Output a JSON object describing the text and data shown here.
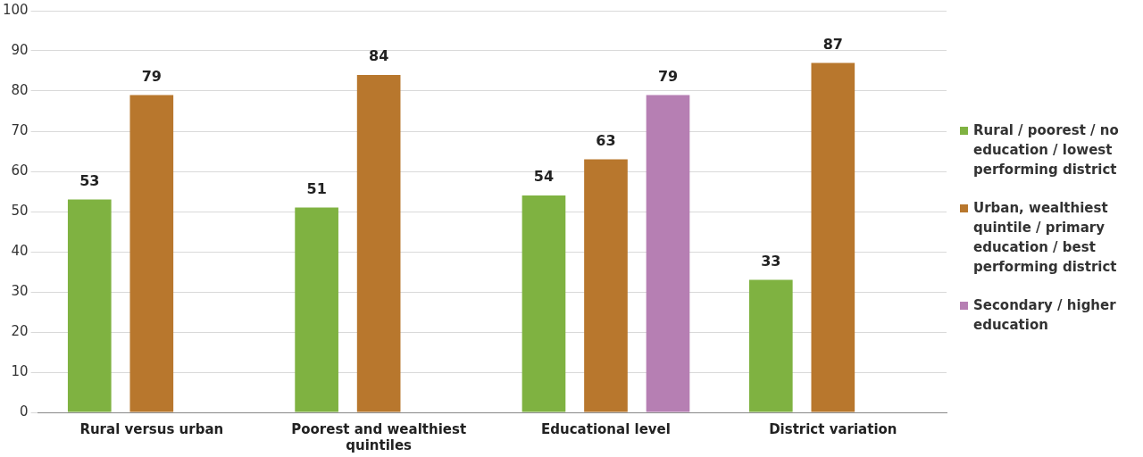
{
  "chart_data": {
    "type": "bar",
    "categories": [
      "Rural versus urban",
      "Poorest and wealthiest quintiles",
      "Educational level",
      "District variation"
    ],
    "series": [
      {
        "name": "Rural / poorest / no education / lowest performing district",
        "color": "#7fb241",
        "values": [
          53,
          51,
          54,
          33
        ]
      },
      {
        "name": "Urban, wealthiest quintile / primary education / best performing district",
        "color": "#b8772d",
        "values": [
          79,
          84,
          63,
          87
        ]
      },
      {
        "name": "Secondary / higher education",
        "color": "#b67fb3",
        "values": [
          null,
          null,
          79,
          null
        ]
      }
    ],
    "ylim": [
      0,
      100
    ],
    "yticks": [
      0,
      10,
      20,
      30,
      40,
      50,
      60,
      70,
      80,
      90,
      100
    ],
    "grid": "y",
    "legend": "right",
    "data_labels": true
  }
}
